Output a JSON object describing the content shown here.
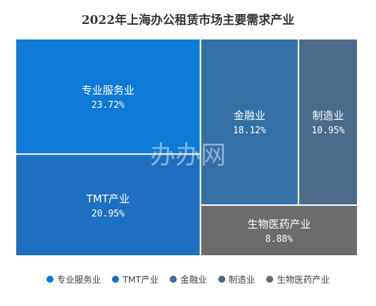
{
  "chart_data": {
    "type": "treemap",
    "title": "2022年上海办公租赁市场主要需求产业",
    "watermark": "办办网",
    "items": [
      {
        "name": "专业服务业",
        "value": 23.72,
        "label": "23.72%",
        "color": "#0f7ad6"
      },
      {
        "name": "TMT产业",
        "value": 20.95,
        "label": "20.95%",
        "color": "#1e6fbf"
      },
      {
        "name": "金融业",
        "value": 18.12,
        "label": "18.12%",
        "color": "#3270a6"
      },
      {
        "name": "制造业",
        "value": 10.95,
        "label": "10.95%",
        "color": "#4a6b8a"
      },
      {
        "name": "生物医药产业",
        "value": 8.88,
        "label": "8.88%",
        "color": "#6b6b6b"
      }
    ],
    "legend_position": "bottom"
  }
}
